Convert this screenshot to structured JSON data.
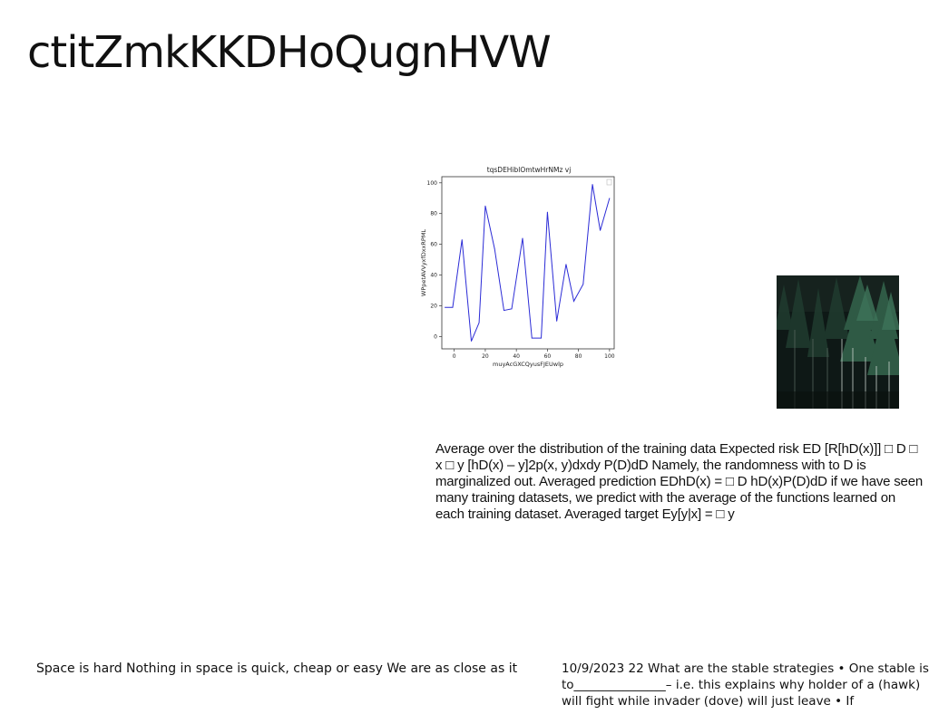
{
  "slide": {
    "title": "ctitZmkKKDHoQugnHVW"
  },
  "chart_data": {
    "type": "line",
    "title": "tqsDEHiblOmtwHrNMz vj",
    "xlabel": "muyAcGXCQyusFJEUwlp",
    "ylabel": "WPpetAVVyxfDxxRPML",
    "xlim": [
      -8,
      103
    ],
    "ylim": [
      -8,
      104
    ],
    "xticks": [
      0,
      20,
      40,
      60,
      80,
      100
    ],
    "yticks": [
      0,
      20,
      40,
      60,
      80,
      100
    ],
    "grid": false,
    "legend": "top-right",
    "color": "#2b2bd6",
    "series": [
      {
        "x": [
          -6,
          -1,
          5,
          11,
          16,
          20,
          26,
          32,
          37,
          44,
          50,
          56,
          60,
          66,
          72,
          77,
          83,
          89,
          94,
          100
        ],
        "y": [
          19,
          19,
          63,
          -3,
          9,
          85,
          57,
          17,
          18,
          64,
          -1,
          -1,
          81,
          10,
          47,
          23,
          34,
          99,
          69,
          90
        ]
      }
    ]
  },
  "photo": {
    "subject": "dark forest of conifer trees"
  },
  "body_text": "Average over the distribution of the training data Expected risk ED [R[hD(x)]] □ D □ x □ y [hD(x) – y]2p(x, y)dxdy P(D)dD Namely, the randomness with to D is marginalized out. Averaged prediction EDhD(x) = □ D hD(x)P(D)dD if we have seen many training datasets, we predict with the average of the functions learned on each training dataset. Averaged target Ey[y|x] = □ y",
  "captions": {
    "left": "Space is hard Nothing in space is quick, cheap or easy We are as close as it",
    "right": "10/9/2023 22 What are the stable strategies • One stable is to_______________– i.e. this explains why holder of a (hawk) will fight while invader (dove) will just leave • If"
  }
}
